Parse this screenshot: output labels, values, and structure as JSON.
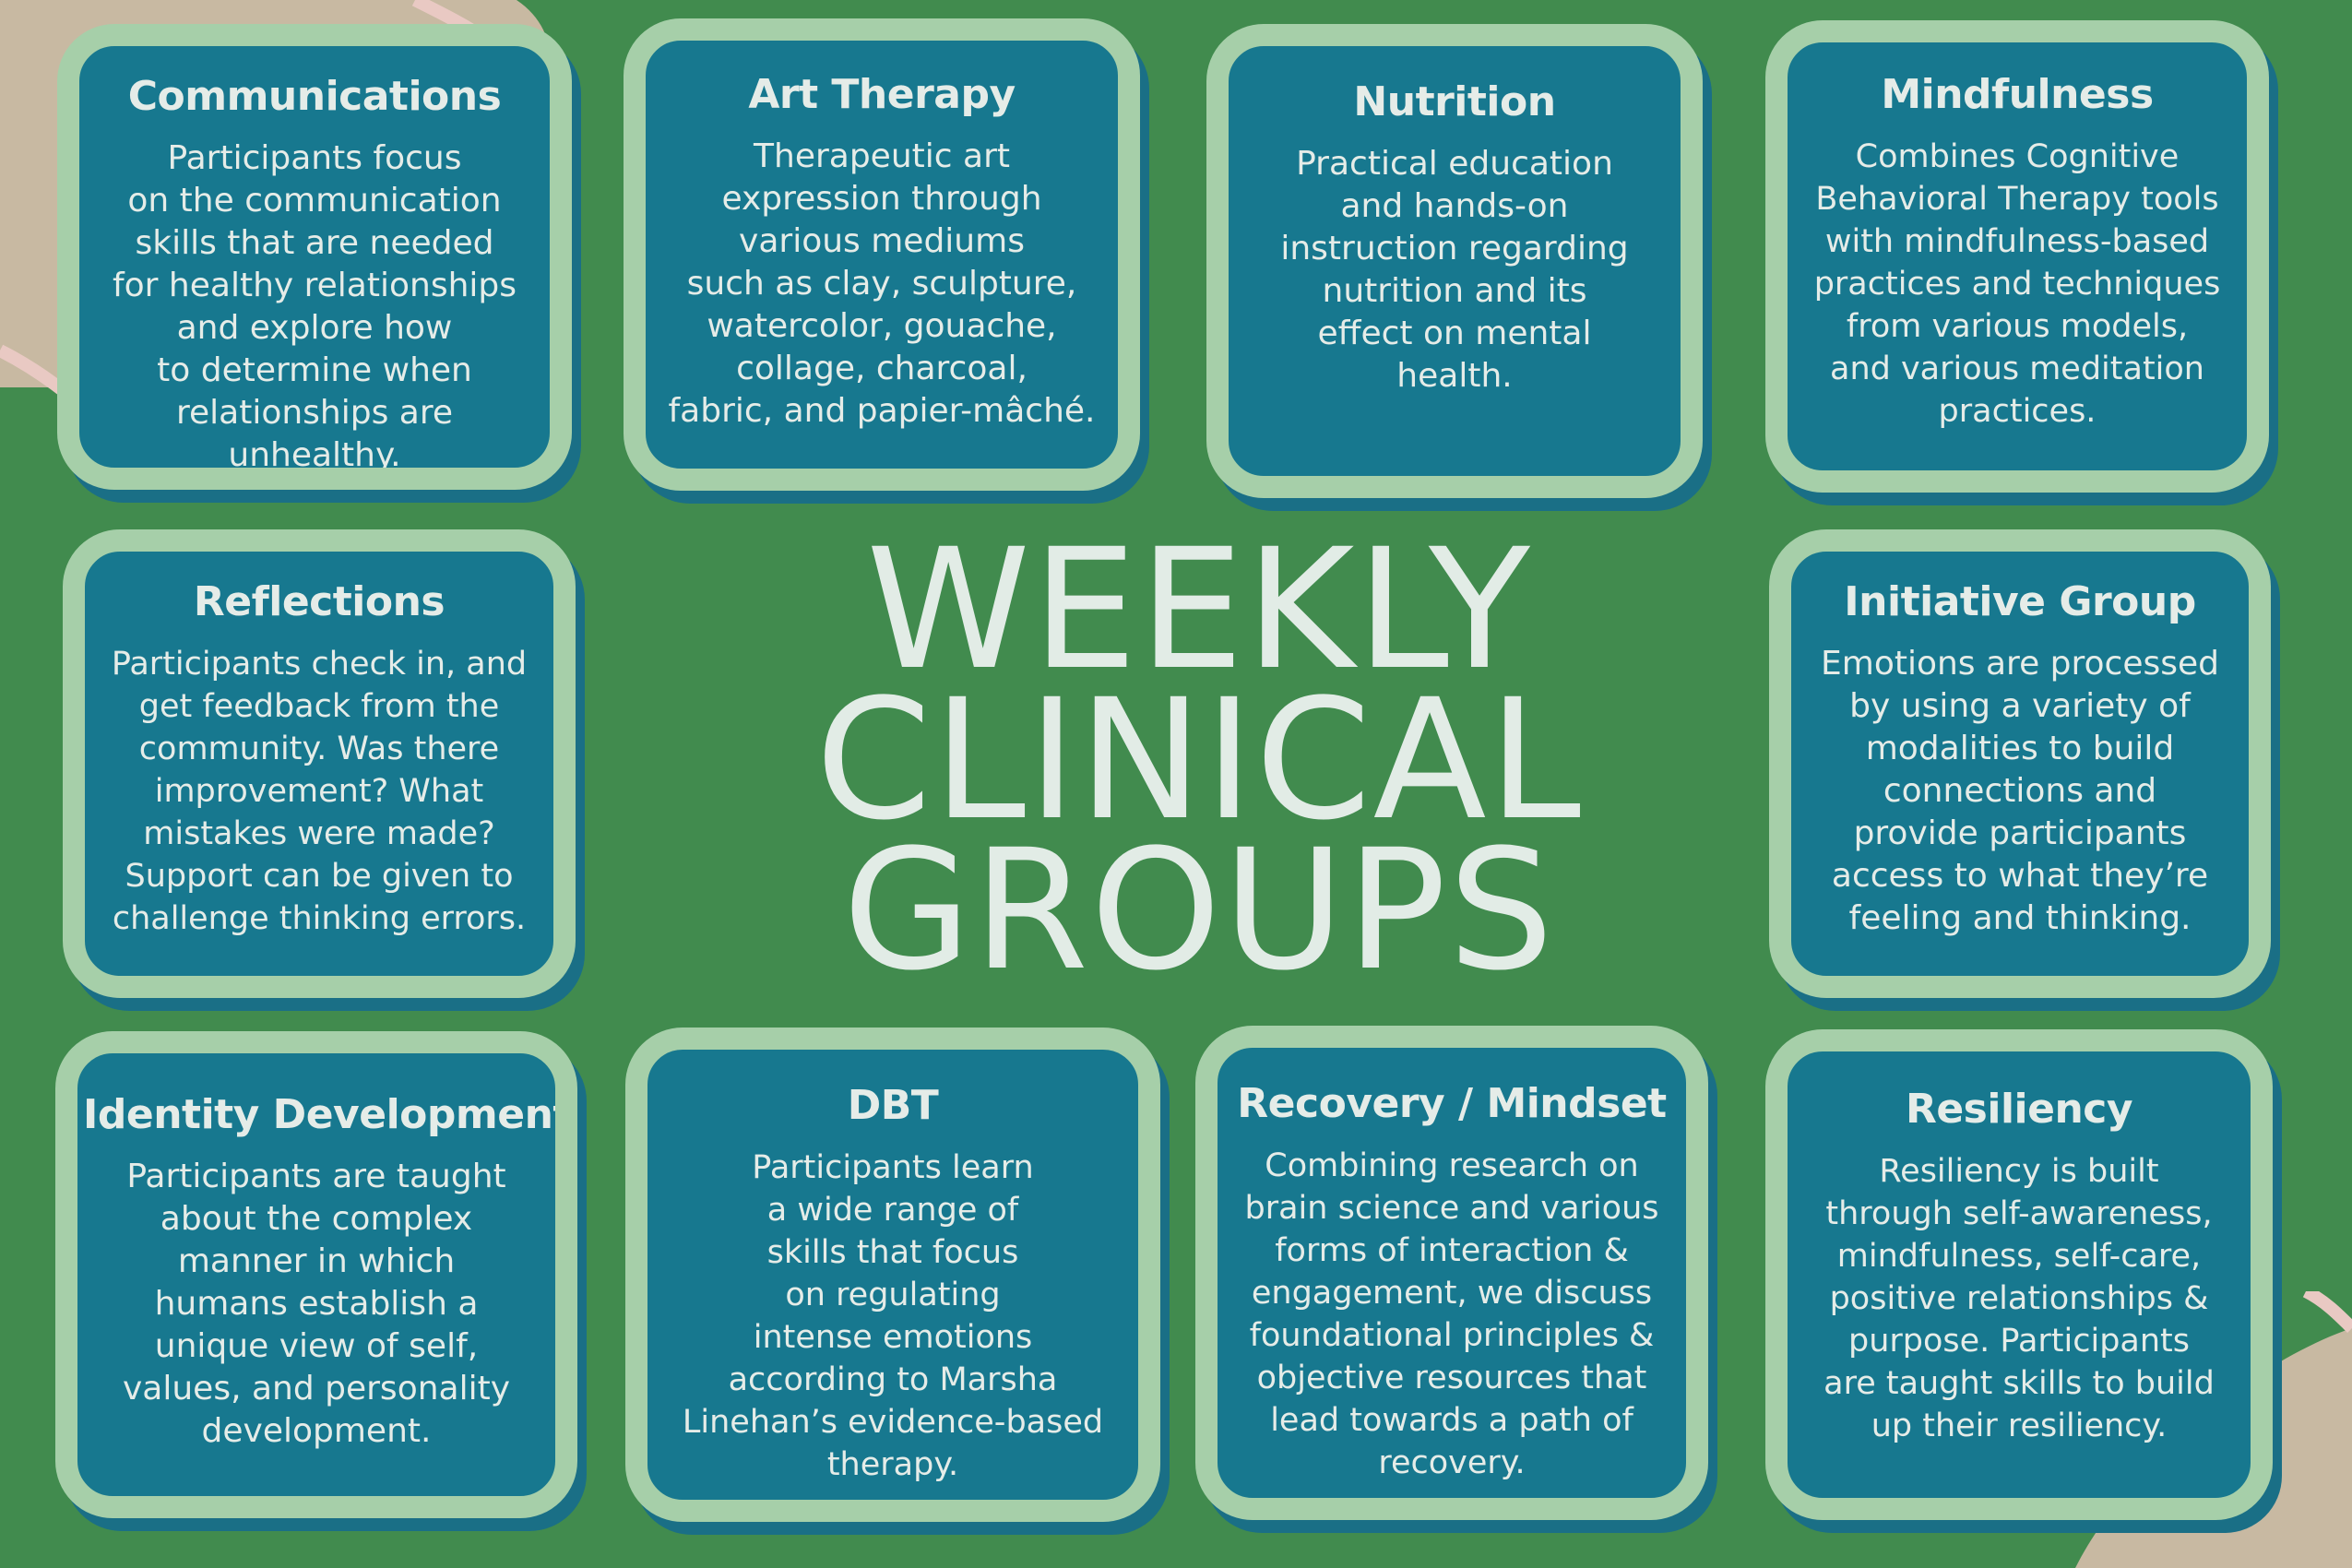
{
  "title": {
    "line1": "WEEKLY",
    "line2": "CLINICAL",
    "line3": "GROUPS"
  },
  "colors": {
    "background": "#418b4e",
    "card_fill": "#17788f",
    "card_border": "#a6cfa9",
    "text": "#e5ece8",
    "decoration_tan": "#c8b9a2",
    "decoration_pink": "#e9c9c3"
  },
  "cards": [
    {
      "heading": "Communications",
      "body": "Participants focus\non the communication\nskills that are needed\nfor healthy relationships\nand explore how\nto determine when\nrelationships are\nunhealthy."
    },
    {
      "heading": "Art Therapy",
      "body": "Therapeutic art\nexpression through\nvarious mediums\nsuch as clay, sculpture,\nwatercolor, gouache,\ncollage, charcoal,\nfabric, and papier-mâché."
    },
    {
      "heading": "Nutrition",
      "body": "Practical education\nand hands-on\ninstruction regarding\nnutrition and its\neffect on mental\nhealth."
    },
    {
      "heading": "Mindfulness",
      "body": "Combines Cognitive\nBehavioral Therapy tools\nwith mindfulness-based\npractices and techniques\nfrom various models,\nand various meditation\npractices."
    },
    {
      "heading": "Reflections",
      "body": "Participants check in, and\nget feedback from the\ncommunity. Was there\nimprovement? What\nmistakes were made?\nSupport can be given to\nchallenge thinking errors."
    },
    {
      "heading": "Initiative Group",
      "body": "Emotions are processed\nby using a variety of\nmodalities to build\nconnections and\nprovide participants\naccess to what they’re\nfeeling and thinking."
    },
    {
      "heading": "Identity Development",
      "body": "Participants are taught\nabout the complex\nmanner in which\nhumans establish a\nunique view of self,\nvalues, and personality\ndevelopment."
    },
    {
      "heading": "DBT",
      "body": "Participants learn\na wide range of\nskills that focus\non regulating\nintense emotions\naccording to Marsha\nLinehan’s evidence-based\ntherapy."
    },
    {
      "heading": "Recovery / Mindset",
      "body": "Combining research on\nbrain science and various\nforms of interaction &\nengagement, we discuss\nfoundational principles &\nobjective resources that\nlead towards a path of\nrecovery."
    },
    {
      "heading": "Resiliency",
      "body": "Resiliency is built\nthrough self-awareness,\nmindfulness, self-care,\npositive relationships &\npurpose. Participants\nare taught skills to build\nup their resiliency."
    }
  ]
}
